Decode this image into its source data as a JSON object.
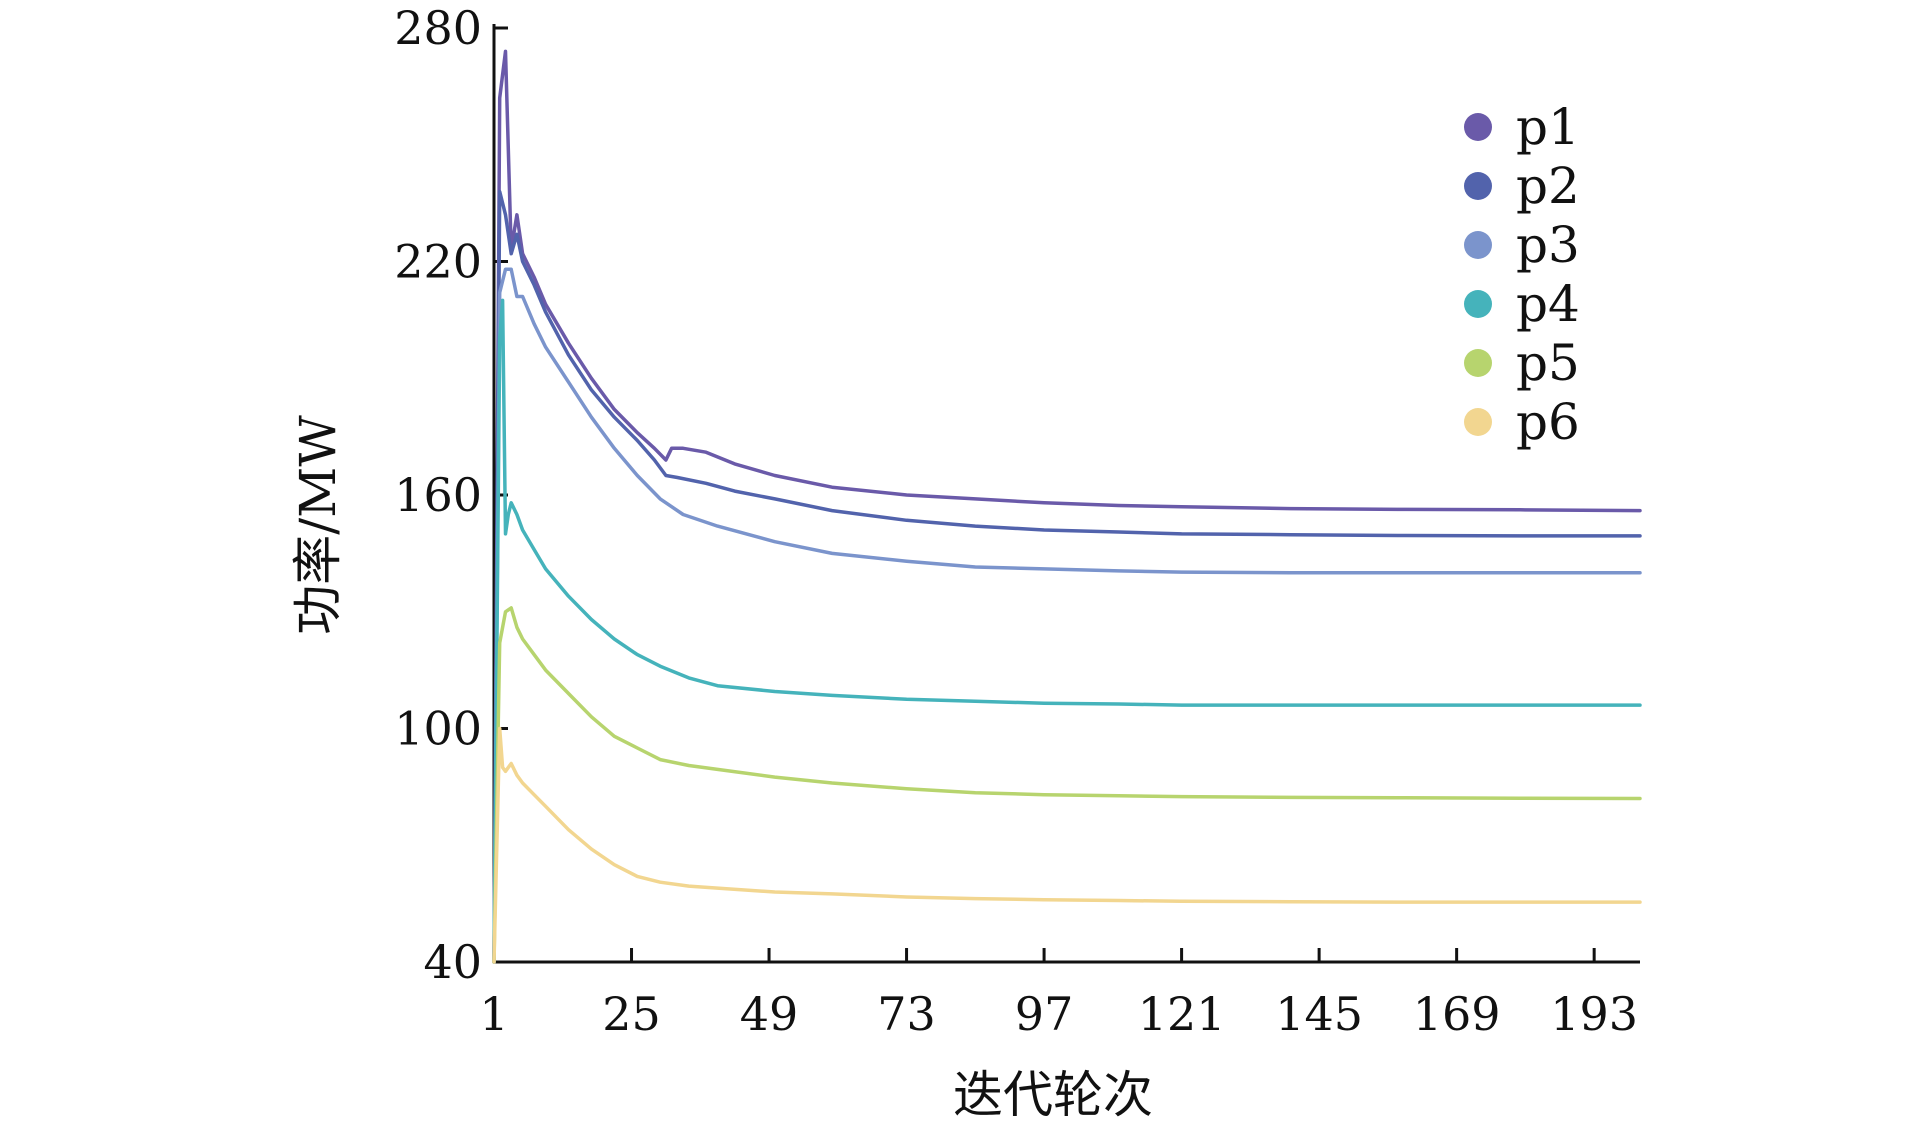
{
  "chart_data": {
    "type": "line",
    "title": "",
    "xlabel": "迭代轮次",
    "ylabel": "功率/MW",
    "xlim": [
      1,
      201
    ],
    "ylim": [
      40,
      280
    ],
    "x_ticks": [
      1,
      25,
      49,
      73,
      97,
      121,
      145,
      169,
      193
    ],
    "y_ticks": [
      40,
      100,
      160,
      220,
      280
    ],
    "grid": false,
    "legend_position": "top-right",
    "series": [
      {
        "name": "p1",
        "color": "#6a5aa9",
        "x": [
          1,
          2,
          3,
          4,
          5,
          6,
          8,
          10,
          14,
          18,
          22,
          26,
          29,
          31,
          32,
          34,
          38,
          43,
          50,
          60,
          73,
          85,
          97,
          110,
          121,
          140,
          160,
          180,
          201
        ],
        "y": [
          40,
          262,
          274,
          223,
          232,
          222,
          216,
          209,
          199,
          190,
          182,
          176,
          172,
          169,
          172,
          172,
          171,
          168,
          165,
          162,
          160,
          159,
          158,
          157.3,
          157,
          156.5,
          156.3,
          156.2,
          156
        ]
      },
      {
        "name": "p2",
        "color": "#5263ac",
        "x": [
          1,
          2,
          3,
          4,
          5,
          6,
          8,
          10,
          14,
          18,
          22,
          26,
          29,
          31,
          33,
          38,
          43,
          50,
          60,
          73,
          85,
          97,
          110,
          121,
          140,
          160,
          180,
          201
        ],
        "y": [
          40,
          238,
          232,
          222,
          227,
          220,
          214,
          207,
          196,
          187,
          180,
          174,
          169,
          165,
          164.5,
          163,
          161,
          159,
          156,
          153.5,
          152,
          151,
          150.5,
          150,
          149.8,
          149.6,
          149.5,
          149.5
        ]
      },
      {
        "name": "p3",
        "color": "#7b94cc",
        "x": [
          1,
          2,
          3,
          4,
          5,
          6,
          8,
          10,
          14,
          18,
          22,
          26,
          30,
          34,
          40,
          50,
          60,
          73,
          85,
          97,
          110,
          121,
          140,
          160,
          180,
          201
        ],
        "y": [
          40,
          212,
          218,
          218,
          211,
          211,
          204,
          198,
          189,
          180,
          172,
          165,
          159,
          155,
          152,
          148,
          145,
          143,
          141.5,
          141,
          140.5,
          140.2,
          140,
          140,
          140,
          140
        ]
      },
      {
        "name": "p4",
        "color": "#45b3bb",
        "x": [
          1,
          2,
          2.5,
          3,
          3.5,
          4,
          5,
          6,
          8,
          10,
          14,
          18,
          22,
          26,
          30,
          35,
          40,
          50,
          60,
          73,
          85,
          97,
          110,
          121,
          140,
          160,
          180,
          201
        ],
        "y": [
          40,
          200,
          210,
          150,
          155,
          158,
          155,
          151,
          146,
          141,
          134,
          128,
          123,
          119,
          116,
          113,
          111,
          109.5,
          108.5,
          107.5,
          107,
          106.5,
          106.3,
          106,
          106,
          106,
          106,
          106
        ]
      },
      {
        "name": "p5",
        "color": "#b7d46e",
        "x": [
          1,
          2,
          3,
          4,
          5,
          6,
          8,
          10,
          14,
          18,
          22,
          26,
          30,
          35,
          40,
          50,
          60,
          73,
          85,
          97,
          110,
          121,
          140,
          160,
          180,
          201
        ],
        "y": [
          40,
          122,
          130,
          131,
          126,
          123,
          119,
          115,
          109,
          103,
          98,
          95,
          92,
          90.5,
          89.5,
          87.5,
          86,
          84.5,
          83.5,
          83,
          82.7,
          82.5,
          82.3,
          82.2,
          82.1,
          82
        ]
      },
      {
        "name": "p6",
        "color": "#f2d690",
        "x": [
          1,
          2,
          2.5,
          3,
          4,
          5,
          6,
          8,
          10,
          14,
          18,
          22,
          26,
          30,
          35,
          40,
          50,
          60,
          73,
          85,
          97,
          110,
          121,
          140,
          160,
          180,
          201
        ],
        "y": [
          40,
          100,
          90,
          89,
          91,
          88,
          86,
          83,
          80,
          74,
          69,
          65,
          62,
          60.5,
          59.5,
          59,
          58,
          57.5,
          56.7,
          56.3,
          56,
          55.8,
          55.6,
          55.5,
          55.4,
          55.4,
          55.4
        ]
      }
    ]
  }
}
